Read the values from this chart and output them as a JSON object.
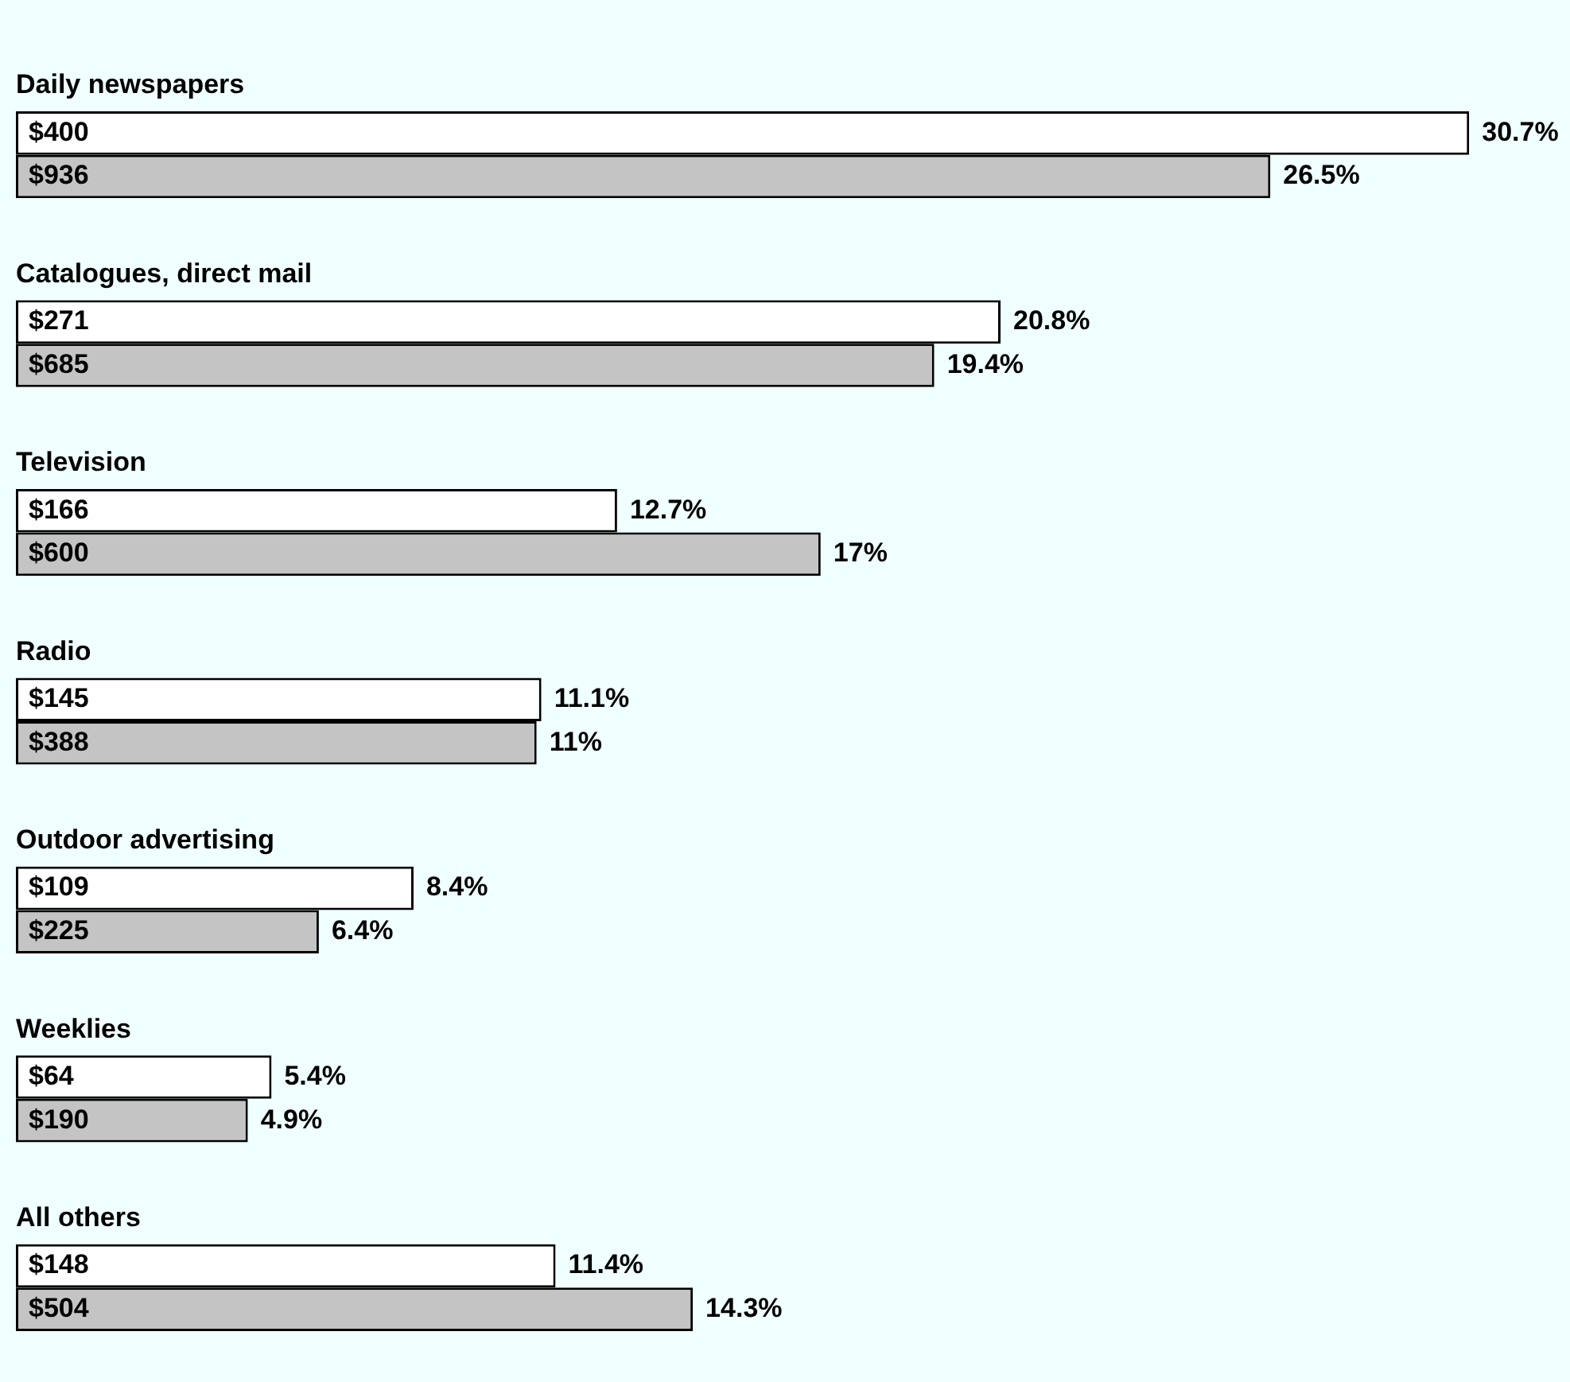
{
  "chart_data": {
    "type": "bar",
    "orientation": "horizontal",
    "categories": [
      "Daily newspapers",
      "Catalogues, direct mail",
      "Television",
      "Radio",
      "Outdoor advertising",
      "Weeklies",
      "All others"
    ],
    "series": [
      {
        "color": "#ffffff",
        "values": [
          30.7,
          20.8,
          12.7,
          11.1,
          8.4,
          5.4,
          11.4
        ],
        "value_labels": [
          "30.7%",
          "20.8%",
          "12.7%",
          "11.1%",
          "8.4%",
          "5.4%",
          "11.4%"
        ]
      },
      {
        "color": "#c4c4c4",
        "values": [
          26.5,
          19.4,
          17,
          11,
          6.4,
          4.9,
          14.3
        ],
        "value_labels": [
          "26.5%",
          "19.4%",
          "17%",
          "11%",
          "6.4%",
          "4.9%",
          "14.3%"
        ]
      }
    ],
    "annotations": [
      "$400",
      "$936",
      "$271",
      "$685",
      "$166",
      "$600",
      "$145",
      "$388",
      "$109",
      "$225",
      "$64",
      "$190",
      "$148",
      "$504"
    ],
    "legend": false
  }
}
